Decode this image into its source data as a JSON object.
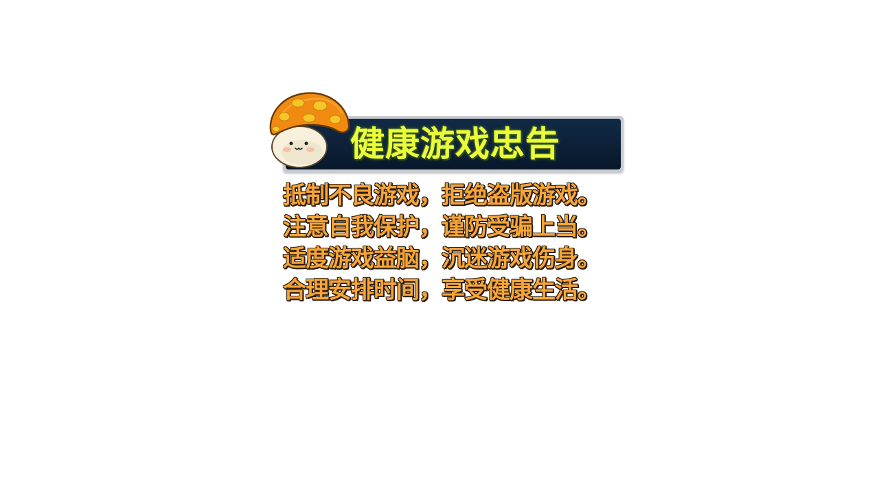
{
  "notice": {
    "title": "健康游戏忠告",
    "lines": [
      "抵制不良游戏，拒绝盗版游戏。",
      "注意自我保护，谨防受骗上当。",
      "适度游戏益脑，沉迷游戏伤身。",
      "合理安排时间，享受健康生活。"
    ]
  },
  "mascot": {
    "icon": "mushroom-mascot-icon",
    "cap_color": "#f08a10",
    "spot_color": "#f6c52a",
    "face_color": "#f6f0dc"
  },
  "colors": {
    "title_text": "#eaff3a",
    "banner_bg": "#0b1f36",
    "advice_text": "#f5a539",
    "advice_outline": "#2a1c0c"
  }
}
